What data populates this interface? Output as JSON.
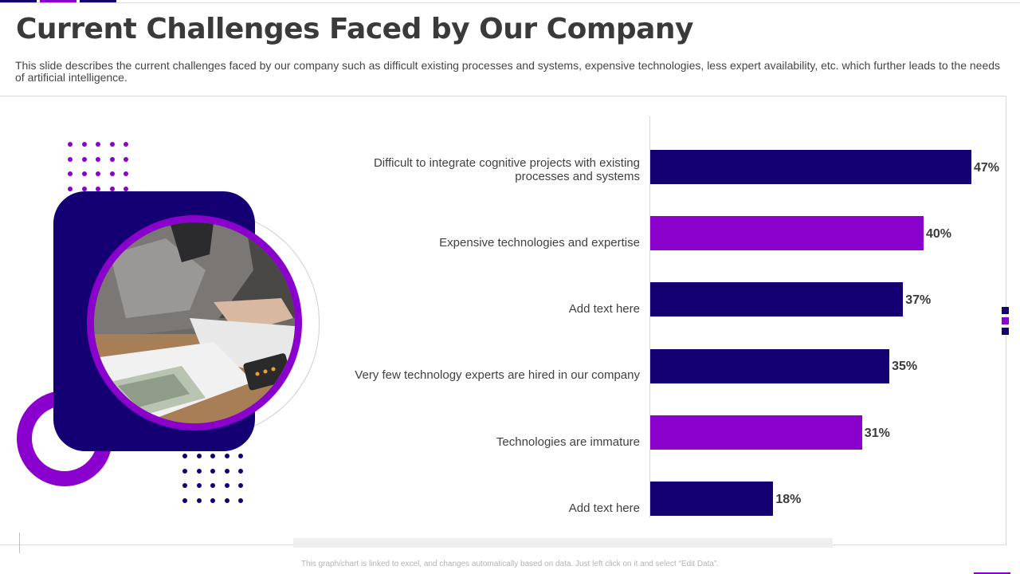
{
  "colors": {
    "navy": "#140073",
    "purple": "#8a00cc"
  },
  "header": {
    "title": "Current Challenges Faced by Our Company",
    "description": "This slide describes the current challenges faced by our company such as difficult existing processes and systems, expensive technologies, less expert availability,  etc. which further leads to the needs of artificial intelligence."
  },
  "footer": {
    "note": "This graph/chart is linked to excel, and changes automatically based on data. Just left click on it and select “Edit Data”."
  },
  "chart_data": {
    "type": "bar",
    "orientation": "horizontal",
    "title": "",
    "xlabel": "",
    "ylabel": "",
    "xlim": [
      0,
      50
    ],
    "grid": false,
    "categories": [
      "Difficult to integrate cognitive projects with existing processes and systems",
      "Expensive technologies and expertise",
      "Add text here",
      "Very few technology experts are hired in our company",
      "Technologies are immature",
      "Add text here"
    ],
    "values": [
      47,
      40,
      37,
      35,
      31,
      18
    ],
    "value_labels": [
      "47%",
      "40%",
      "37%",
      "35%",
      "31%",
      "18%"
    ],
    "bar_colors": [
      "#140073",
      "#8a00cc",
      "#140073",
      "#140073",
      "#8a00cc",
      "#140073"
    ]
  }
}
